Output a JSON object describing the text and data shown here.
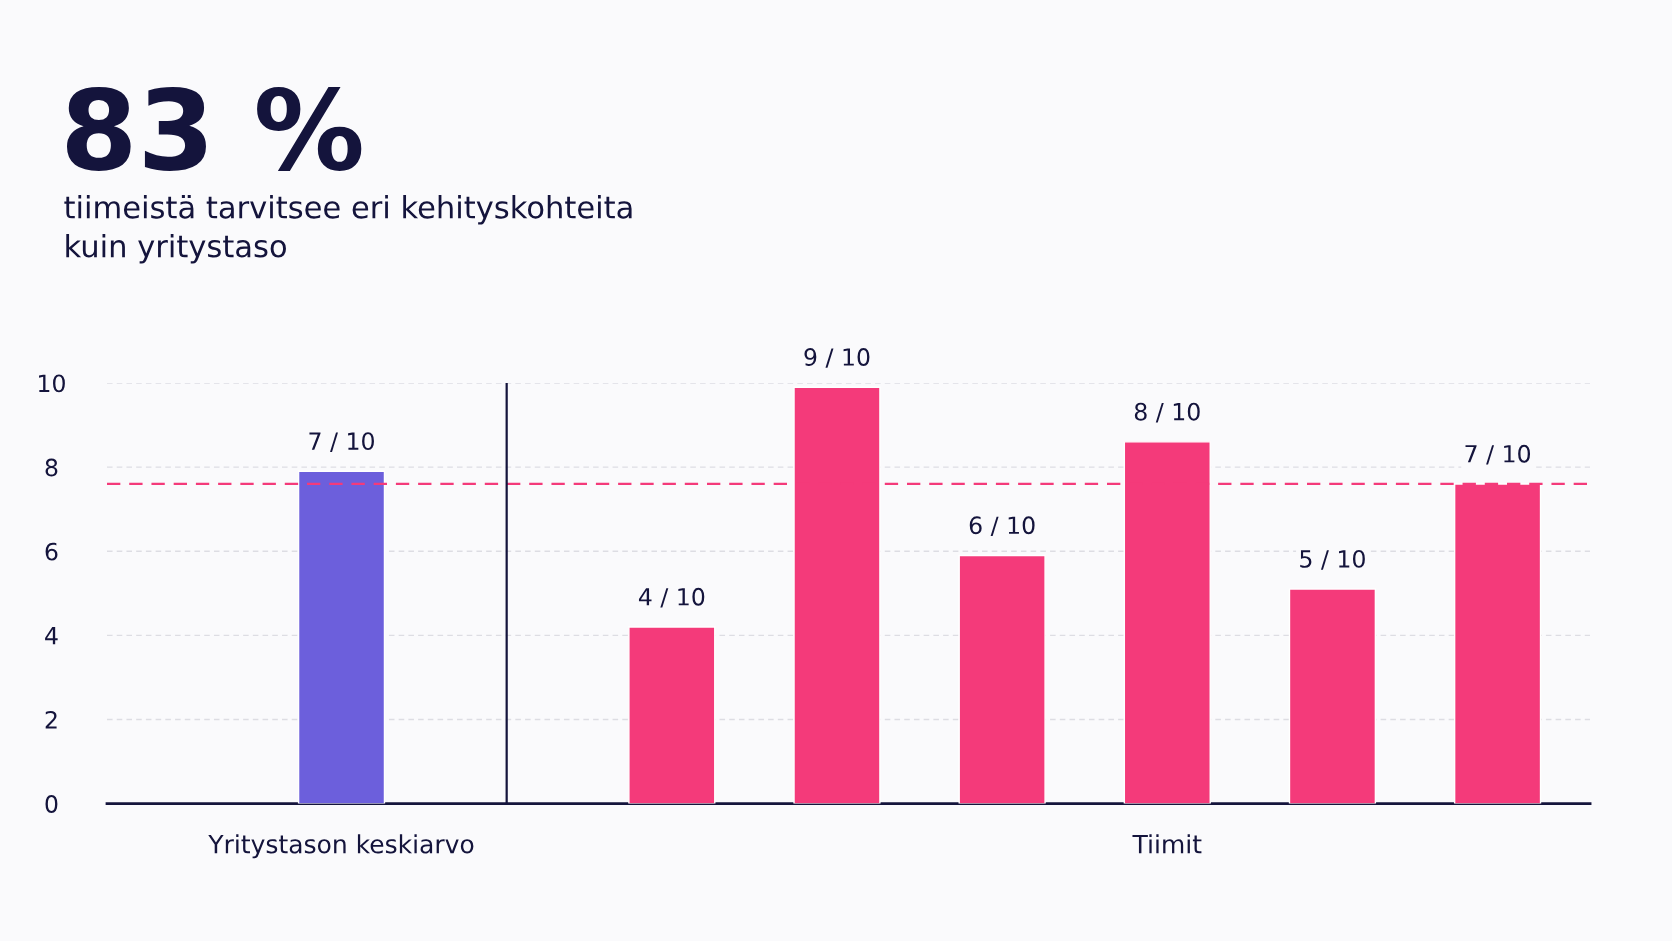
{
  "chart_data": {
    "type": "bar",
    "title": "83 %",
    "subtitle": "tiimeistä tarvitsee eri kehityskohteita\nkuin yritystaso",
    "categories": [
      "Yritystason keskiarvo",
      null,
      null,
      null,
      null,
      "Tiimit",
      null,
      null
    ],
    "values": [
      7.9,
      null,
      4.2,
      9.9,
      5.9,
      8.6,
      5.1,
      7.6
    ],
    "colors": [
      "#6c5fdc",
      null,
      "#f43a7a",
      "#f43a7a",
      "#f43a7a",
      "#f43a7a",
      "#f43a7a",
      "#f43a7a"
    ],
    "annotations": [
      "7 / 10",
      "4 / 10",
      "9 / 10",
      "6 / 10",
      "8 / 10",
      "5 / 10",
      "7 / 10"
    ],
    "ylim": [
      0,
      10
    ],
    "yticks": [
      0,
      2,
      4,
      6,
      8,
      10
    ],
    "grid": "y",
    "ref_lines": [
      {
        "axis": "y",
        "value": 7.6,
        "color": "#f43a7a",
        "line_style": "dashed"
      }
    ]
  }
}
